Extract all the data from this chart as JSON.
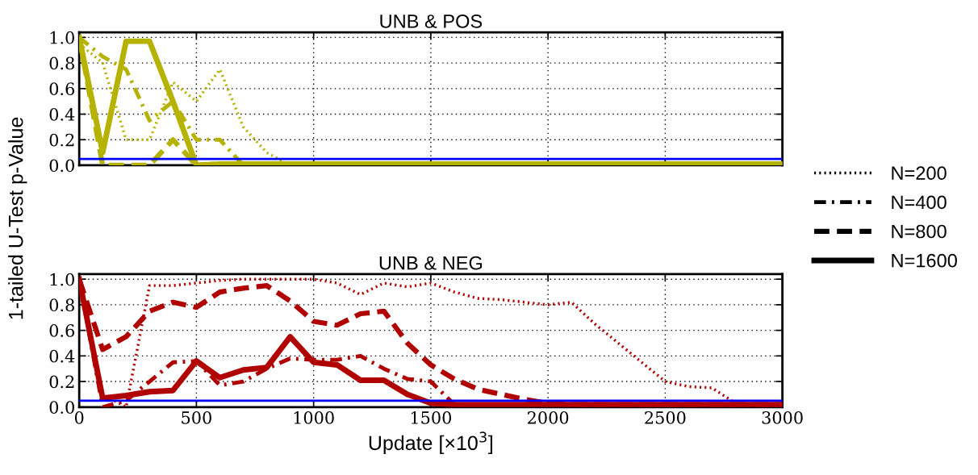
{
  "chart_data": [
    {
      "type": "line",
      "title": "UNB & POS",
      "ylabel": "1-tailed U-Test p-Value",
      "x": [
        0,
        100,
        200,
        300,
        400,
        500,
        600,
        700,
        800,
        900,
        1000,
        1100,
        1200,
        1300,
        1400,
        1500,
        1600,
        1700,
        1800,
        1900,
        2000,
        2100,
        2200,
        2300,
        2400,
        2500,
        2600,
        2700,
        2800,
        2900,
        3000
      ],
      "series": [
        {
          "name": "N=200",
          "color": "#b5b300",
          "line_style": "dotted",
          "values": [
            0.95,
            0.8,
            0.2,
            0.2,
            0.65,
            0.5,
            0.75,
            0.3,
            0.1,
            0.0,
            0.01,
            0.01,
            0.01,
            0.01,
            0.01,
            0.01,
            0.01,
            0.01,
            0.01,
            0.01,
            0.01,
            0.01,
            0.01,
            0.01,
            0.01,
            0.01,
            0.01,
            0.01,
            0.01,
            0.01,
            0.01
          ]
        },
        {
          "name": "N=400",
          "color": "#b5b300",
          "line_style": "dashdot",
          "values": [
            1.0,
            0.85,
            0.75,
            0.35,
            0.5,
            0.2,
            0.2,
            0.0,
            0.01,
            0.01,
            0.01,
            0.01,
            0.01,
            0.01,
            0.01,
            0.01,
            0.01,
            0.01,
            0.01,
            0.01,
            0.01,
            0.01,
            0.01,
            0.01,
            0.01,
            0.01,
            0.01,
            0.01,
            0.01,
            0.01,
            0.01
          ]
        },
        {
          "name": "N=800",
          "color": "#b5b300",
          "line_style": "dashed",
          "values": [
            1.0,
            0.0,
            0.0,
            0.0,
            0.2,
            0.0,
            0.01,
            0.01,
            0.01,
            0.01,
            0.01,
            0.01,
            0.01,
            0.01,
            0.01,
            0.01,
            0.01,
            0.01,
            0.01,
            0.01,
            0.01,
            0.01,
            0.01,
            0.01,
            0.01,
            0.01,
            0.01,
            0.01,
            0.01,
            0.01,
            0.01
          ]
        },
        {
          "name": "N=1600",
          "color": "#b5b300",
          "line_style": "solid",
          "values": [
            1.0,
            0.1,
            0.97,
            0.97,
            0.5,
            0.0,
            0.01,
            0.01,
            0.01,
            0.01,
            0.01,
            0.01,
            0.01,
            0.01,
            0.01,
            0.01,
            0.01,
            0.01,
            0.01,
            0.01,
            0.01,
            0.01,
            0.01,
            0.01,
            0.01,
            0.01,
            0.01,
            0.01,
            0.01,
            0.01,
            0.01
          ]
        }
      ],
      "ref_lines": [
        {
          "axis": "y",
          "value": 0.05,
          "color": "#0000ff"
        }
      ],
      "xlim": [
        0,
        3000
      ],
      "xticks": [
        0,
        500,
        1000,
        1500,
        2000,
        2500,
        3000
      ],
      "ylim": [
        0,
        1.04
      ],
      "yticks": [
        {
          "value": 0,
          "label": "0.0"
        },
        {
          "value": 0.2,
          "label": "0.2"
        },
        {
          "value": 0.4,
          "label": "0.4"
        },
        {
          "value": 0.6,
          "label": "0.6"
        },
        {
          "value": 0.8,
          "label": "0.8"
        },
        {
          "value": 1,
          "label": "1.0"
        }
      ],
      "tick_labels": "y",
      "grid": true,
      "legend": "right"
    },
    {
      "type": "line",
      "title": "UNB & NEG",
      "xlabel": "Update [×10$^{3}$]",
      "x": [
        0,
        100,
        200,
        300,
        400,
        500,
        600,
        700,
        800,
        900,
        1000,
        1100,
        1200,
        1300,
        1400,
        1500,
        1600,
        1700,
        1800,
        1900,
        2000,
        2100,
        2200,
        2300,
        2400,
        2500,
        2600,
        2700,
        2800,
        2900,
        3000
      ],
      "series": [
        {
          "color": "#b00000",
          "line_style": "dotted",
          "values": [
            1.0,
            0.1,
            0.0,
            0.95,
            0.95,
            0.97,
            0.99,
            1.0,
            1.0,
            1.0,
            1.0,
            0.97,
            0.88,
            0.97,
            0.94,
            0.97,
            0.9,
            0.85,
            0.84,
            0.82,
            0.8,
            0.82,
            0.65,
            0.5,
            0.35,
            0.2,
            0.16,
            0.15,
            0.03,
            0.02,
            0.02
          ]
        },
        {
          "color": "#b00000",
          "line_style": "dashdot",
          "values": [
            1.0,
            0.0,
            0.05,
            0.2,
            0.35,
            0.36,
            0.17,
            0.2,
            0.3,
            0.38,
            0.37,
            0.37,
            0.4,
            0.3,
            0.22,
            0.2,
            0.02,
            0.02,
            0.02,
            0.02,
            0.02,
            0.02,
            0.02,
            0.02,
            0.02,
            0.02,
            0.02,
            0.02,
            0.02,
            0.02,
            0.02
          ]
        },
        {
          "color": "#b00000",
          "line_style": "dashed",
          "values": [
            1.0,
            0.45,
            0.55,
            0.75,
            0.82,
            0.78,
            0.9,
            0.93,
            0.95,
            0.83,
            0.67,
            0.64,
            0.73,
            0.75,
            0.5,
            0.33,
            0.22,
            0.14,
            0.1,
            0.06,
            0.03,
            0.02,
            0.02,
            0.02,
            0.02,
            0.02,
            0.02,
            0.02,
            0.02,
            0.02,
            0.02
          ]
        },
        {
          "color": "#b00000",
          "line_style": "solid",
          "values": [
            1.0,
            0.07,
            0.09,
            0.12,
            0.13,
            0.36,
            0.23,
            0.29,
            0.31,
            0.55,
            0.35,
            0.33,
            0.21,
            0.21,
            0.1,
            0.03,
            0.02,
            0.02,
            0.02,
            0.02,
            0.02,
            0.02,
            0.02,
            0.02,
            0.02,
            0.02,
            0.02,
            0.02,
            0.02,
            0.02,
            0.02
          ]
        }
      ],
      "ref_lines": [
        {
          "axis": "y",
          "value": 0.05,
          "color": "#0000ff"
        }
      ],
      "xlim": [
        0,
        3000
      ],
      "xticks": [
        0,
        500,
        1000,
        1500,
        2000,
        2500,
        3000
      ],
      "ylim": [
        0,
        1.04
      ],
      "yticks": [
        {
          "value": 0,
          "label": "0.0"
        },
        {
          "value": 0.2,
          "label": "0.2"
        },
        {
          "value": 0.4,
          "label": "0.4"
        },
        {
          "value": 0.6,
          "label": "0.6"
        },
        {
          "value": 0.8,
          "label": "0.8"
        },
        {
          "value": 1,
          "label": "1.0"
        }
      ],
      "grid": true
    }
  ]
}
